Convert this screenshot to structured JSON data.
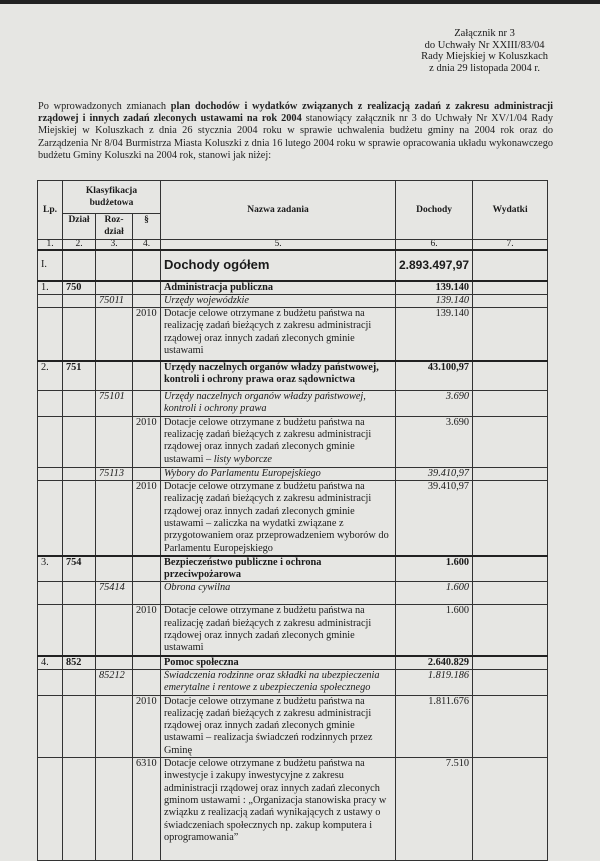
{
  "header": {
    "lines": [
      "Załącznik nr 3",
      "do Uchwały Nr XXIII/83/04",
      "Rady Miejskiej w Koluszkach",
      "z dnia 29 listopada 2004 r."
    ]
  },
  "intro": {
    "part1": "Po wprowadzonych zmianach ",
    "bold": "plan dochodów i wydatków związanych z realizacją zadań z zakresu administracji rządowej i innych zadań zleconych ustawami na rok 2004",
    "part2": " stanowiący załącznik nr 3 do Uchwały Nr XV/1/04 Rady Miejskiej w Koluszkach z dnia 26 stycznia 2004 roku w sprawie uchwalenia budżetu gminy na 2004 rok oraz do Zarządzenia Nr 8/04 Burmistrza Miasta Koluszki z dnia 16 lutego 2004 roku w sprawie opracowania układu wykonawczego budżetu Gminy Koluszki na 2004 rok, stanowi jak niżej:"
  },
  "table": {
    "headers": {
      "lp": "Lp.",
      "klasyfikacja": "Klasyfikacja budżetowa",
      "dzial": "Dział",
      "rozdzial": "Roz-dział",
      "paragraf": "§",
      "nazwa": "Nazwa zadania",
      "dochody": "Dochody",
      "wydatki": "Wydatki"
    },
    "column_numbers": [
      "1.",
      "2.",
      "3.",
      "4.",
      "5.",
      "6.",
      "7."
    ],
    "rows": [
      {
        "type": "total",
        "lp": "I.",
        "dzial": "",
        "rozdzial": "",
        "paragraf": "",
        "nazwa": "Dochody ogółem",
        "nazwa_italic": "",
        "dochody": "2.893.497,97",
        "wydatki": ""
      },
      {
        "type": "dzial",
        "lp": "1.",
        "dzial": "750",
        "rozdzial": "",
        "paragraf": "",
        "nazwa": "Administracja publiczna",
        "nazwa_italic": "",
        "dochody": "139.140",
        "wydatki": ""
      },
      {
        "type": "rozdzial",
        "lp": "",
        "dzial": "",
        "rozdzial": "75011",
        "paragraf": "",
        "nazwa": "Urzędy wojewódzkie",
        "nazwa_italic": "",
        "dochody": "139.140",
        "wydatki": ""
      },
      {
        "type": "paragraf",
        "lp": "",
        "dzial": "",
        "rozdzial": "",
        "paragraf": "2010",
        "nazwa": "Dotacje celowe otrzymane z budżetu państwa na realizację zadań bieżących z zakresu administracji rządowej oraz innych zadań zleconych gminie ustawami",
        "nazwa_italic": "",
        "dochody": "139.140",
        "wydatki": ""
      },
      {
        "type": "dzial",
        "lp": "2.",
        "dzial": "751",
        "rozdzial": "",
        "paragraf": "",
        "nazwa": "Urzędy naczelnych organów władzy państwowej, kontroli i ochrony prawa oraz sądownictwa",
        "nazwa_italic": "",
        "dochody": "43.100,97",
        "wydatki": ""
      },
      {
        "type": "rozdzial",
        "lp": "",
        "dzial": "",
        "rozdzial": "75101",
        "paragraf": "",
        "nazwa": "Urzędy naczelnych organów władzy państwowej, kontroli i ochrony prawa",
        "nazwa_italic": "",
        "dochody": "3.690",
        "wydatki": ""
      },
      {
        "type": "paragraf",
        "lp": "",
        "dzial": "",
        "rozdzial": "",
        "paragraf": "2010",
        "nazwa": "Dotacje celowe otrzymane z budżetu państwa na realizację zadań bieżących z zakresu administracji rządowej oraz innych zadań zleconych gminie ustawami – ",
        "nazwa_italic": "listy wyborcze",
        "dochody": "3.690",
        "wydatki": ""
      },
      {
        "type": "rozdzial",
        "lp": "",
        "dzial": "",
        "rozdzial": "75113",
        "paragraf": "",
        "nazwa": "Wybory do Parlamentu Europejskiego",
        "nazwa_italic": "",
        "dochody": "39.410,97",
        "wydatki": ""
      },
      {
        "type": "paragraf",
        "lp": "",
        "dzial": "",
        "rozdzial": "",
        "paragraf": "2010",
        "nazwa": "Dotacje celowe otrzymane z budżetu państwa na realizację zadań bieżących z zakresu administracji rządowej oraz innych zadań zleconych gminie ustawami – zaliczka na wydatki związane z przygotowaniem oraz przeprowadzeniem wyborów do Parlamentu Europejskiego",
        "nazwa_italic": "",
        "dochody": "39.410,97",
        "wydatki": ""
      },
      {
        "type": "dzial",
        "lp": "3.",
        "dzial": "754",
        "rozdzial": "",
        "paragraf": "",
        "nazwa": "Bezpieczeństwo publiczne i ochrona przeciwpożarowa",
        "nazwa_italic": "",
        "dochody": "1.600",
        "wydatki": ""
      },
      {
        "type": "rozdzial",
        "lp": "",
        "dzial": "",
        "rozdzial": "75414",
        "paragraf": "",
        "nazwa": "Obrona cywilna",
        "nazwa_italic": "",
        "dochody": "1.600",
        "wydatki": ""
      },
      {
        "type": "paragraf",
        "lp": "",
        "dzial": "",
        "rozdzial": "",
        "paragraf": "2010",
        "nazwa": "Dotacje celowe otrzymane z budżetu państwa na realizację zadań bieżących z zakresu administracji rządowej oraz innych zadań zleconych gminie ustawami",
        "nazwa_italic": "",
        "dochody": "1.600",
        "wydatki": ""
      },
      {
        "type": "dzial",
        "lp": "4.",
        "dzial": "852",
        "rozdzial": "",
        "paragraf": "",
        "nazwa": "Pomoc społeczna",
        "nazwa_italic": "",
        "dochody": "2.640.829",
        "wydatki": ""
      },
      {
        "type": "rozdzial",
        "lp": "",
        "dzial": "",
        "rozdzial": "85212",
        "paragraf": "",
        "nazwa": "Świadczenia rodzinne oraz składki na ubezpieczenia emerytalne i rentowe z ubezpieczenia społecznego",
        "nazwa_italic": "",
        "dochody": "1.819.186",
        "wydatki": ""
      },
      {
        "type": "paragraf",
        "lp": "",
        "dzial": "",
        "rozdzial": "",
        "paragraf": "2010",
        "nazwa": "Dotacje celowe otrzymane z budżetu państwa na realizację zadań bieżących z zakresu administracji rządowej oraz innych zadań zleconych gminie ustawami – realizacja świadczeń rodzinnych przez Gminę",
        "nazwa_italic": "",
        "dochody": "1.811.676",
        "wydatki": ""
      },
      {
        "type": "paragraf",
        "lp": "",
        "dzial": "",
        "rozdzial": "",
        "paragraf": "6310",
        "nazwa": "Dotacje celowe otrzymane z budżetu państwa na inwestycje i zakupy inwestycyjne z zakresu administracji rządowej oraz innych zadań zleconych gminom ustawami : „Organizacja stanowiska pracy w związku z realizacją zadań wynikających z ustawy o świadczeniach społecznych np. zakup komputera i oprogramowania”",
        "nazwa_italic": "",
        "dochody": "7.510",
        "wydatki": ""
      }
    ]
  }
}
